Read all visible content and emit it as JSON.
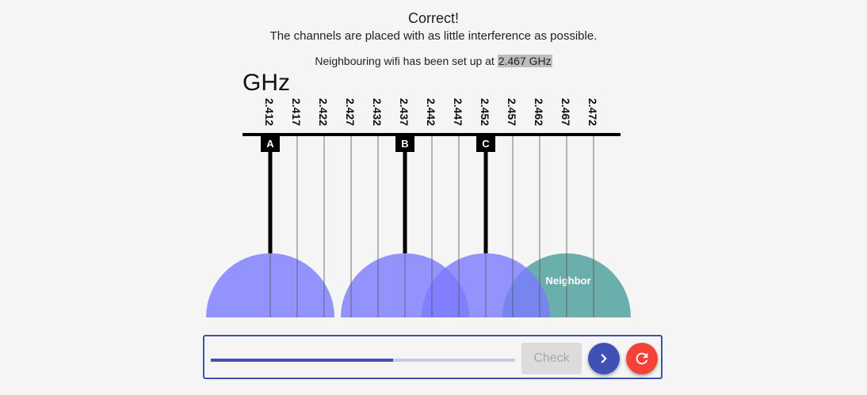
{
  "feedback": {
    "title": "Correct!",
    "message": "The channels are placed with as little interference as possible."
  },
  "neighbour": {
    "text_prefix": "Neighbouring wifi has been set up at ",
    "frequency": "2.467 GHz"
  },
  "diagram": {
    "unit": "GHz",
    "frequencies": [
      "2.412",
      "2.417",
      "2.422",
      "2.427",
      "2.432",
      "2.437",
      "2.442",
      "2.447",
      "2.452",
      "2.457",
      "2.462",
      "2.467",
      "2.472"
    ],
    "channels": [
      {
        "label": "A",
        "frequency": "2.412"
      },
      {
        "label": "B",
        "frequency": "2.437"
      },
      {
        "label": "C",
        "frequency": "2.452"
      }
    ],
    "neighbor": {
      "label": "Neighbor",
      "frequency": "2.467"
    },
    "colors": {
      "channel_fill": "#7b7bff",
      "overlap_fill": "#4b4bff",
      "neighbor_fill": "#6aafab",
      "marker": "#000000"
    }
  },
  "controls": {
    "progress": 0.6,
    "check_label": "Check",
    "next_icon": "chevron-right-icon",
    "reset_icon": "refresh-icon",
    "accent": "#3f51b5",
    "reset_color": "#f44336"
  }
}
